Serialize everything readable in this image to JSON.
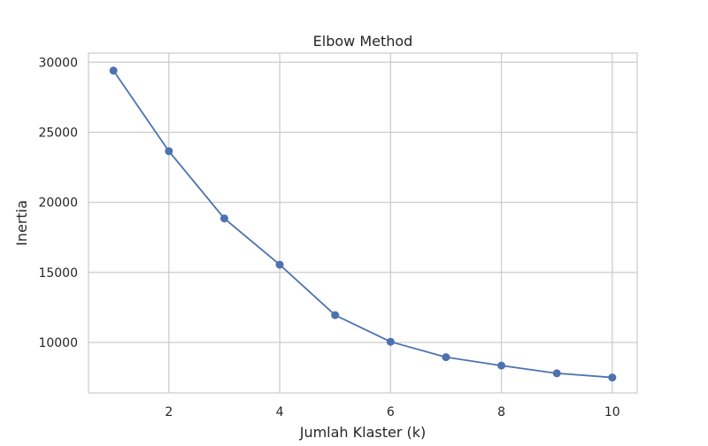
{
  "chart_data": {
    "type": "line",
    "title": "Elbow Method",
    "xlabel": "Jumlah Klaster (k)",
    "ylabel": "Inertia",
    "x": [
      1,
      2,
      3,
      4,
      5,
      6,
      7,
      8,
      9,
      10
    ],
    "series": [
      {
        "values": [
          29400,
          23650,
          18850,
          15550,
          11950,
          10050,
          8950,
          8350,
          7800,
          7500
        ],
        "color": "#4c72b0",
        "marker": "circle"
      }
    ],
    "xticks": [
      2,
      4,
      6,
      8,
      10
    ],
    "xtick_labels": [
      "2",
      "4",
      "6",
      "8",
      "10"
    ],
    "yticks": [
      10000,
      15000,
      20000,
      25000,
      30000
    ],
    "ytick_labels": [
      "10000",
      "15000",
      "20000",
      "25000",
      "30000"
    ],
    "xlim": [
      0.55,
      10.45
    ],
    "ylim": [
      6400,
      30650
    ],
    "grid": true,
    "legend": false
  }
}
